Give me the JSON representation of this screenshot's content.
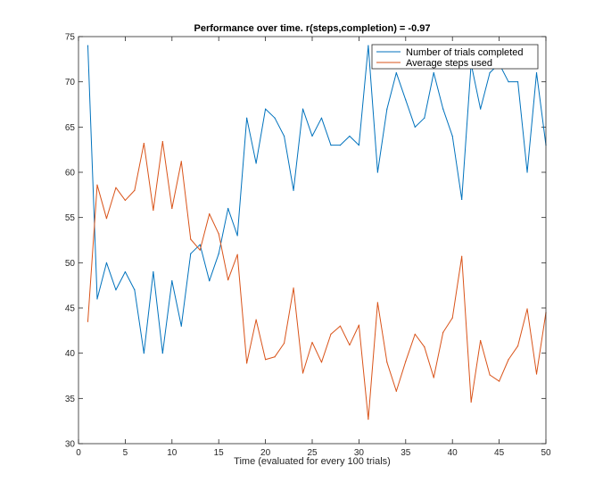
{
  "chart_data": {
    "type": "line",
    "title": "Performance over time. r(steps,completion) = -0.97",
    "xlabel": "Time (evaluated for every 100 trials)",
    "ylabel": "",
    "xlim": [
      0,
      50
    ],
    "ylim": [
      30,
      75
    ],
    "xticks": [
      0,
      5,
      10,
      15,
      20,
      25,
      30,
      35,
      40,
      45,
      50
    ],
    "yticks": [
      30,
      35,
      40,
      45,
      50,
      55,
      60,
      65,
      70,
      75
    ],
    "grid": false,
    "legend_position": "top-right",
    "x": [
      1,
      2,
      3,
      4,
      5,
      6,
      7,
      8,
      9,
      10,
      11,
      12,
      13,
      14,
      15,
      16,
      17,
      18,
      19,
      20,
      21,
      22,
      23,
      24,
      25,
      26,
      27,
      28,
      29,
      30,
      31,
      32,
      33,
      34,
      35,
      36,
      37,
      38,
      39,
      40,
      41,
      42,
      43,
      44,
      45,
      46,
      47,
      48,
      49,
      50
    ],
    "series": [
      {
        "name": "Number of trials completed",
        "color": "#0072bd",
        "values": [
          74,
          46,
          50,
          47,
          49,
          47,
          40,
          49,
          40,
          48,
          43,
          51,
          52,
          48,
          51,
          56,
          53,
          66,
          61,
          67,
          66,
          64,
          58,
          67,
          64,
          66,
          63,
          63,
          64,
          63,
          74,
          60,
          67,
          71,
          68,
          65,
          66,
          71,
          67,
          64,
          57,
          72,
          67,
          71,
          72,
          70,
          70,
          60,
          71,
          63
        ]
      },
      {
        "name": "Average steps used",
        "color": "#d95319",
        "values": [
          43.5,
          58.6,
          54.9,
          58.3,
          56.9,
          58,
          63.2,
          55.8,
          63.4,
          56,
          61.2,
          52.6,
          51.4,
          55.4,
          53.2,
          48.1,
          50.9,
          38.9,
          43.7,
          39.3,
          39.6,
          41.1,
          47.2,
          37.8,
          41.2,
          39,
          42.1,
          43,
          40.9,
          43.1,
          32.7,
          45.6,
          39,
          35.8,
          39.1,
          42.1,
          40.7,
          37.3,
          42.3,
          43.9,
          50.7,
          34.6,
          41.4,
          37.6,
          36.9,
          39.3,
          40.8,
          44.9,
          37.7,
          44.5
        ]
      }
    ]
  }
}
